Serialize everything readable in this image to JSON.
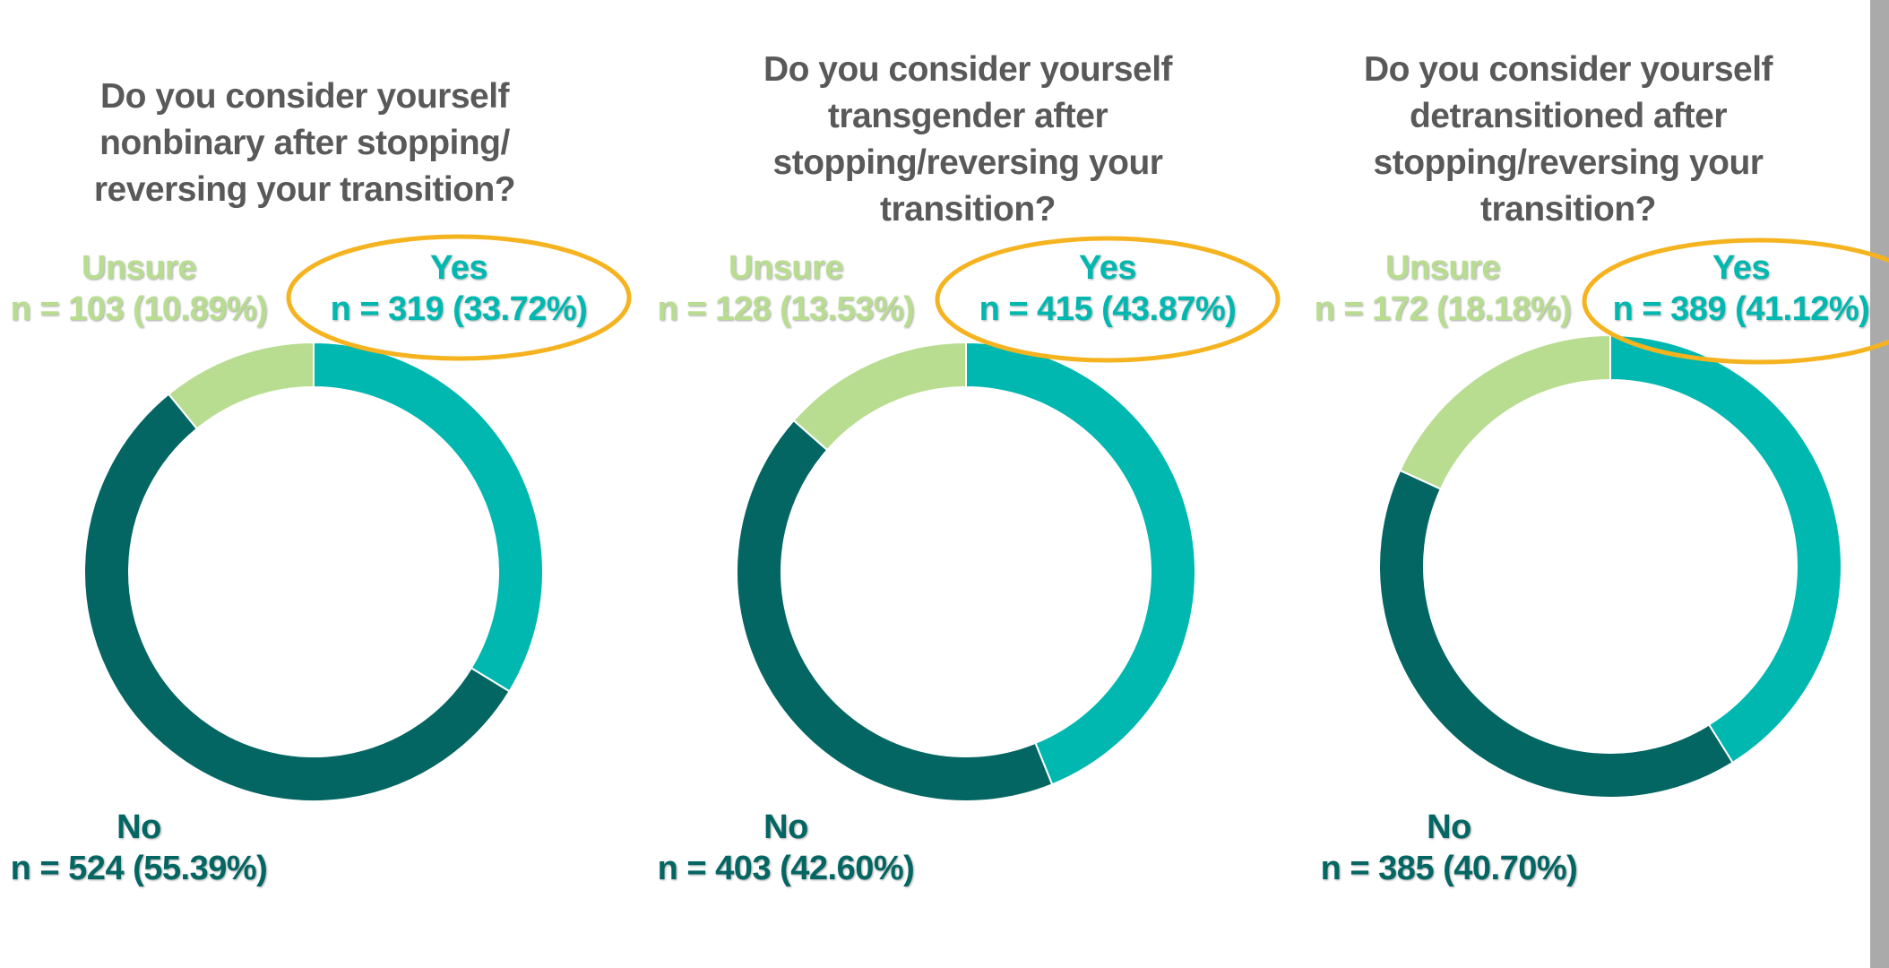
{
  "colors": {
    "yes": "#00b8b0",
    "no": "#036663",
    "unsure": "#b8dd90",
    "highlight": "#f5b320",
    "title": "#595959"
  },
  "chart_data": [
    {
      "type": "pie",
      "title": "Do you consider yourself nonbinary after stopping/ reversing your transition?",
      "title_lines": [
        "Do you consider yourself",
        "nonbinary after stopping/",
        "reversing your transition?"
      ],
      "categories": [
        "Yes",
        "No",
        "Unsure"
      ],
      "values": [
        33.72,
        55.39,
        10.89
      ],
      "counts": [
        319,
        524,
        103
      ],
      "labels": {
        "yes_name": "Yes",
        "yes_value": "n = 319 (33.72%)",
        "no_name": "No",
        "no_value": "n = 524 (55.39%)",
        "unsure_name": "Unsure",
        "unsure_value": "n = 103 (10.89%)"
      }
    },
    {
      "type": "pie",
      "title": "Do you consider yourself transgender after stopping/reversing your transition?",
      "title_lines": [
        "Do you consider yourself",
        "transgender after",
        "stopping/reversing your",
        "transition?"
      ],
      "categories": [
        "Yes",
        "No",
        "Unsure"
      ],
      "values": [
        43.87,
        42.6,
        13.53
      ],
      "counts": [
        415,
        403,
        128
      ],
      "labels": {
        "yes_name": "Yes",
        "yes_value": "n = 415 (43.87%)",
        "no_name": "No",
        "no_value": "n = 403 (42.60%)",
        "unsure_name": "Unsure",
        "unsure_value": "n = 128 (13.53%)"
      }
    },
    {
      "type": "pie",
      "title": "Do you consider yourself detransitioned after stopping/reversing your transition?",
      "title_lines": [
        "Do you consider yourself",
        "detransitioned after",
        "stopping/reversing your",
        "transition?"
      ],
      "categories": [
        "Yes",
        "No",
        "Unsure"
      ],
      "values": [
        41.12,
        40.7,
        18.18
      ],
      "counts": [
        389,
        385,
        172
      ],
      "labels": {
        "yes_name": "Yes",
        "yes_value": "n = 389 (41.12%)",
        "no_name": "No",
        "no_value": "n = 385 (40.70%)",
        "unsure_name": "Unsure",
        "unsure_value": "n = 172 (18.18%)"
      }
    }
  ]
}
